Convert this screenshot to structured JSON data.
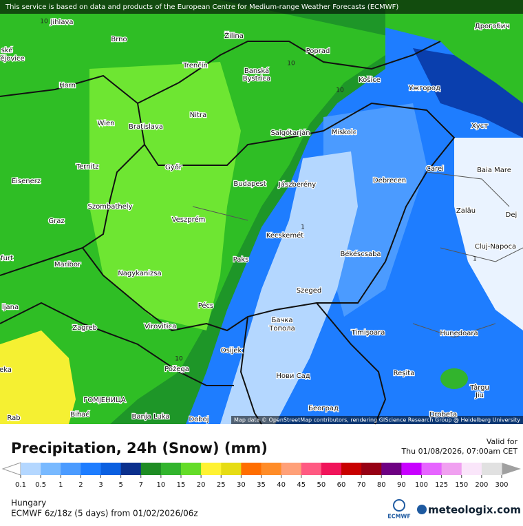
{
  "banner": "This service is based on data and products of the European Centre for Medium-range Weather Forecasts (ECMWF)",
  "map": {
    "cities": [
      "Jihlava",
      "Brno",
      "Žilina",
      "Poprad",
      "Дрогобич",
      "Trenčín",
      "Banská",
      "Bystrica",
      "Košice",
      "Ужгород",
      "Horn",
      "Nitra",
      "Wien",
      "Bratislava",
      "Salgótarján",
      "Miskolc",
      "Хуст",
      "Ternitz",
      "Győr",
      "Carei",
      "Baia Mare",
      "Eisenerz",
      "Budapest",
      "Jászberény",
      "Debrecen",
      "Szombathely",
      "Zalău",
      "Graz",
      "Veszprém",
      "Dej",
      "Kecskemét",
      "Cluj-Napoca",
      "Maribor",
      "Békéscsaba",
      "Paks",
      "Nagykanizsa",
      "Szeged",
      "Pécs",
      "ljana",
      "Virovitica",
      "Бачка",
      "Топола",
      "Timișoara",
      "Zagreb",
      "Hunedoara",
      "Osijek",
      "Požega",
      "Reșita",
      "Нови Сад",
      "Târgu",
      "Jiu",
      "ГОМЈЕНИЦА",
      "Bihać",
      "Banja Luka",
      "Doboj",
      "Београд",
      "Drobeta",
      "ské",
      "ějovice",
      "furt",
      "eka",
      "Rab"
    ],
    "contours": [
      "10",
      "10",
      "10",
      "1",
      "1",
      "10"
    ],
    "attribution": "Map data © OpenStreetMap contributors, rendering GIScience Research Group @ Heidelberg University"
  },
  "legend": {
    "title": "Precipitation, 24h (Snow) (mm)",
    "valid_label": "Valid for",
    "valid_time": "Thu 01/08/2026, 07:00am CET",
    "ticks": [
      0.1,
      0.5,
      1,
      2,
      3,
      5,
      7,
      10,
      15,
      20,
      25,
      30,
      35,
      40,
      45,
      50,
      60,
      70,
      80,
      90,
      100,
      125,
      150,
      200,
      300
    ],
    "colors": [
      "#b4d7ff",
      "#78b9ff",
      "#4b9bff",
      "#1e7dff",
      "#0a5fe0",
      "#0a2f8c",
      "#1e8c23",
      "#32b42d",
      "#64dc28",
      "#fff232",
      "#e6dc14",
      "#ff6e00",
      "#ff8c28",
      "#ffa078",
      "#ff5a82",
      "#f0145a",
      "#c80000",
      "#960014",
      "#6e0082",
      "#c800ff",
      "#e664ff",
      "#f0a0f0",
      "#fae6fa",
      "#e1e1e1"
    ]
  },
  "footer": {
    "region": "Hungary",
    "model": "ECMWF 6z/18z (5 days) from 01/02/2026/06z",
    "logo_ecmwf": "ECMWF",
    "logo_site": "meteologix.com"
  }
}
